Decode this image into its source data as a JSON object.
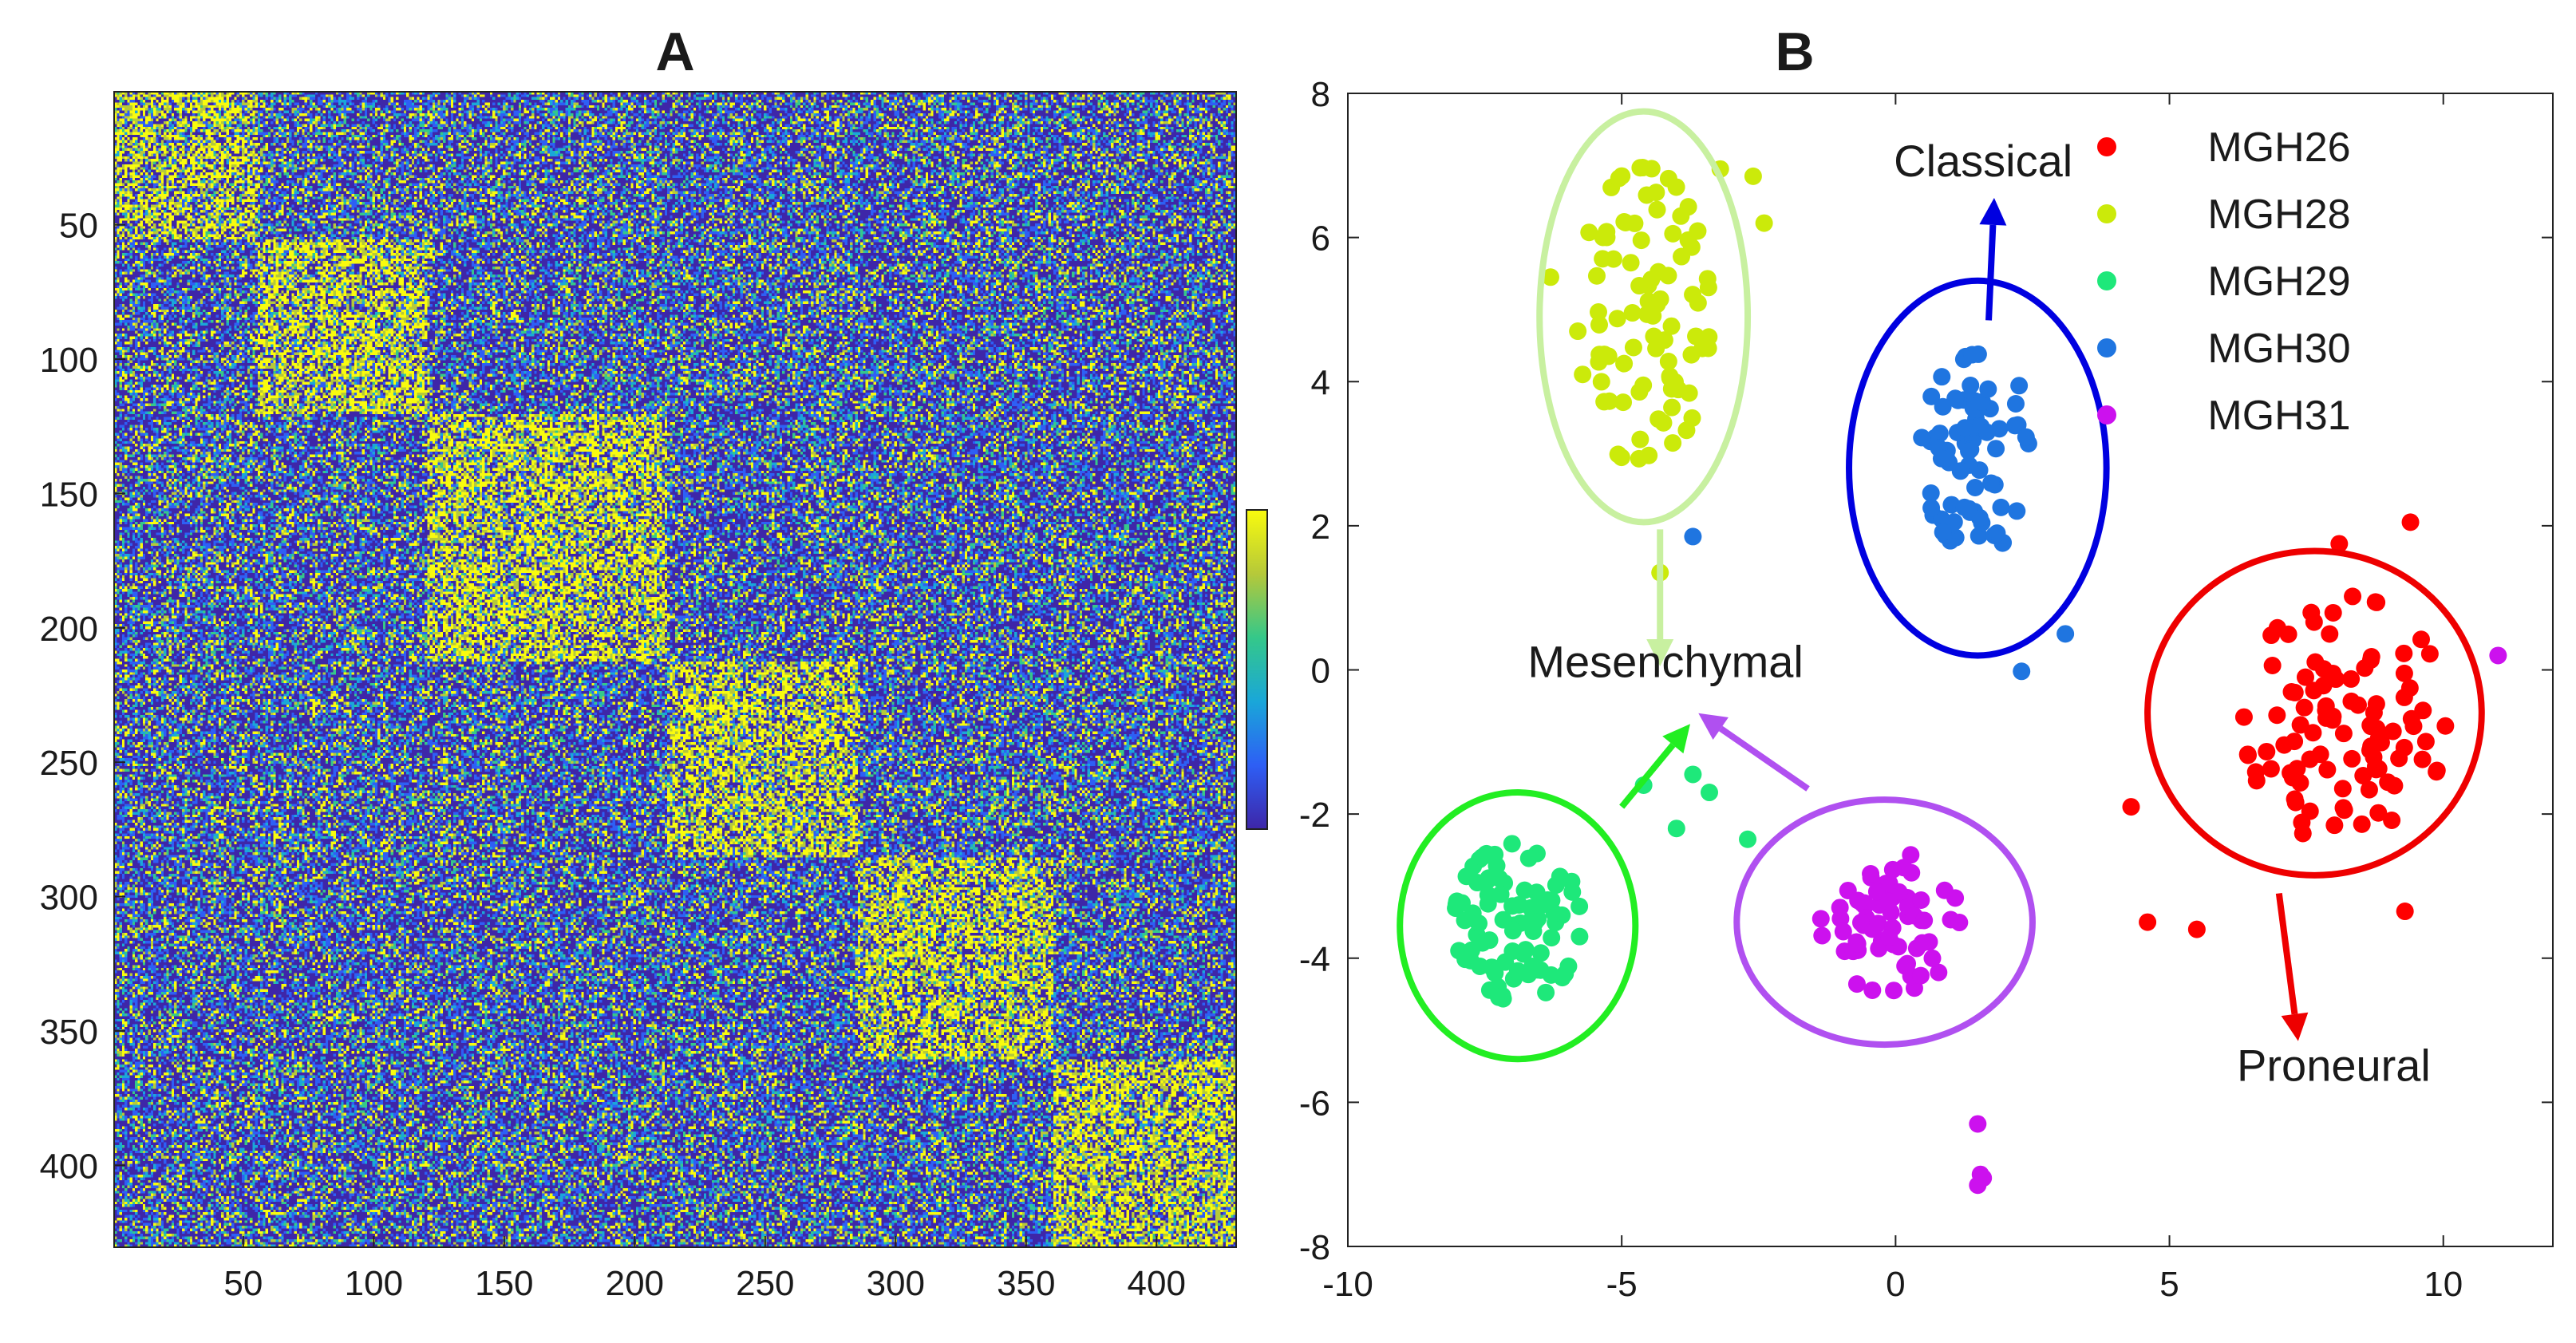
{
  "chart_data": [
    {
      "type": "heatmap",
      "title": "A",
      "xlabel": "",
      "ylabel": "",
      "x_range": [
        1,
        430
      ],
      "y_range": [
        1,
        430
      ],
      "x_ticks": [
        50,
        100,
        150,
        200,
        250,
        300,
        350,
        400
      ],
      "y_ticks": [
        50,
        100,
        150,
        200,
        250,
        300,
        350,
        400
      ],
      "blocks": [
        {
          "start": 1,
          "end": 55
        },
        {
          "start": 56,
          "end": 120
        },
        {
          "start": 121,
          "end": 212
        },
        {
          "start": 213,
          "end": 285
        },
        {
          "start": 286,
          "end": 360
        },
        {
          "start": 361,
          "end": 430
        }
      ],
      "colormap": [
        "#3e26a8",
        "#2e5ff5",
        "#1aa7d9",
        "#35c88a",
        "#b6c93a",
        "#f9fb0e"
      ],
      "colorbar": true,
      "block_density": 0.55,
      "background_density": 0.18
    },
    {
      "type": "scatter",
      "title": "B",
      "xlabel": "",
      "ylabel": "",
      "xlim": [
        -10,
        12
      ],
      "ylim": [
        -8,
        8
      ],
      "x_ticks": [
        -10,
        -5,
        0,
        5,
        10
      ],
      "y_ticks": [
        -8,
        -6,
        -4,
        -2,
        0,
        2,
        4,
        6,
        8
      ],
      "legend_position": "top-right",
      "series": [
        {
          "name": "MGH26",
          "color": "#ff0000",
          "cx": 8.2,
          "cy": -0.7,
          "sx": 1.6,
          "sy": 1.5,
          "count": 100,
          "seed": 11,
          "extra": [
            [
              4.6,
              -3.5
            ],
            [
              5.5,
              -3.6
            ],
            [
              9.3,
              -3.35
            ],
            [
              4.3,
              -1.9
            ],
            [
              9.4,
              2.05
            ],
            [
              8.1,
              1.75
            ]
          ]
        },
        {
          "name": "MGH28",
          "color": "#cbea0a",
          "cx": -4.6,
          "cy": 4.9,
          "sx": 1.05,
          "sy": 1.8,
          "count": 90,
          "seed": 23,
          "extra": [
            [
              -4.3,
              1.35
            ],
            [
              -3.2,
              6.95
            ],
            [
              -2.6,
              6.85
            ],
            [
              -2.4,
              6.2
            ],
            [
              -6.3,
              5.45
            ]
          ]
        },
        {
          "name": "MGH29",
          "color": "#1ee87a",
          "cx": -6.9,
          "cy": -3.5,
          "sx": 1.0,
          "sy": 0.95,
          "count": 85,
          "seed": 37,
          "extra": [
            [
              -3.7,
              -1.45
            ],
            [
              -3.4,
              -1.7
            ],
            [
              -4.0,
              -2.2
            ],
            [
              -4.6,
              -1.6
            ],
            [
              -2.7,
              -2.35
            ]
          ]
        },
        {
          "name": "MGH30",
          "color": "#1f75e0",
          "cx": 1.5,
          "cy": 3.0,
          "sx": 0.9,
          "sy": 1.2,
          "count": 75,
          "seed": 41,
          "extra": [
            [
              -3.7,
              1.85
            ],
            [
              2.3,
              -0.02
            ],
            [
              3.1,
              0.5
            ]
          ]
        },
        {
          "name": "MGH31",
          "color": "#cc11ee",
          "cx": -0.1,
          "cy": -3.5,
          "sx": 1.1,
          "sy": 0.85,
          "count": 70,
          "seed": 53,
          "extra": [
            [
              1.5,
              -6.3
            ],
            [
              1.55,
              -7.0
            ],
            [
              1.5,
              -7.15
            ],
            [
              1.6,
              -7.05
            ],
            [
              11.0,
              0.2
            ]
          ]
        }
      ],
      "ellipses": [
        {
          "label_color": "#c8f0a0",
          "cx": -4.6,
          "cy": 4.9,
          "rx": 1.9,
          "ry": 2.85
        },
        {
          "label_color": "#0000e0",
          "cx": 1.5,
          "cy": 2.8,
          "rx": 2.35,
          "ry": 2.6
        },
        {
          "label_color": "#ee0000",
          "cx": 7.65,
          "cy": -0.6,
          "rx": 3.05,
          "ry": 2.25
        },
        {
          "label_color": "#22ee22",
          "cx": -6.9,
          "cy": -3.55,
          "rx": 2.15,
          "ry": 1.85
        },
        {
          "label_color": "#b050f0",
          "cx": -0.2,
          "cy": -3.5,
          "rx": 2.7,
          "ry": 1.7
        }
      ],
      "annotations": [
        {
          "text": "Classical",
          "color": "#0000e0",
          "from": [
            1.7,
            4.85
          ],
          "to": [
            1.8,
            6.55
          ],
          "tx": 1.6,
          "ty": 6.85
        },
        {
          "text": "Mesenchymal",
          "color": "#c8f0a0",
          "from": [
            -4.3,
            1.95
          ],
          "to": [
            -4.3,
            0.05
          ],
          "tx": -4.2,
          "ty": -0.1
        },
        {
          "text": "",
          "color": "#22ee22",
          "from": [
            -5.0,
            -1.9
          ],
          "to": [
            -3.75,
            -0.75
          ],
          "tx": 0,
          "ty": 0
        },
        {
          "text": "",
          "color": "#b050f0",
          "from": [
            -1.6,
            -1.65
          ],
          "to": [
            -3.6,
            -0.6
          ],
          "tx": 0,
          "ty": 0
        },
        {
          "text": "Proneural",
          "color": "#ee0000",
          "from": [
            7.0,
            -3.1
          ],
          "to": [
            7.35,
            -5.15
          ],
          "tx": 8.0,
          "ty": -5.7
        }
      ]
    }
  ],
  "panels": {
    "a_title": "A",
    "b_title": "B"
  },
  "legend": [
    "MGH26",
    "MGH28",
    "MGH29",
    "MGH30",
    "MGH31"
  ]
}
